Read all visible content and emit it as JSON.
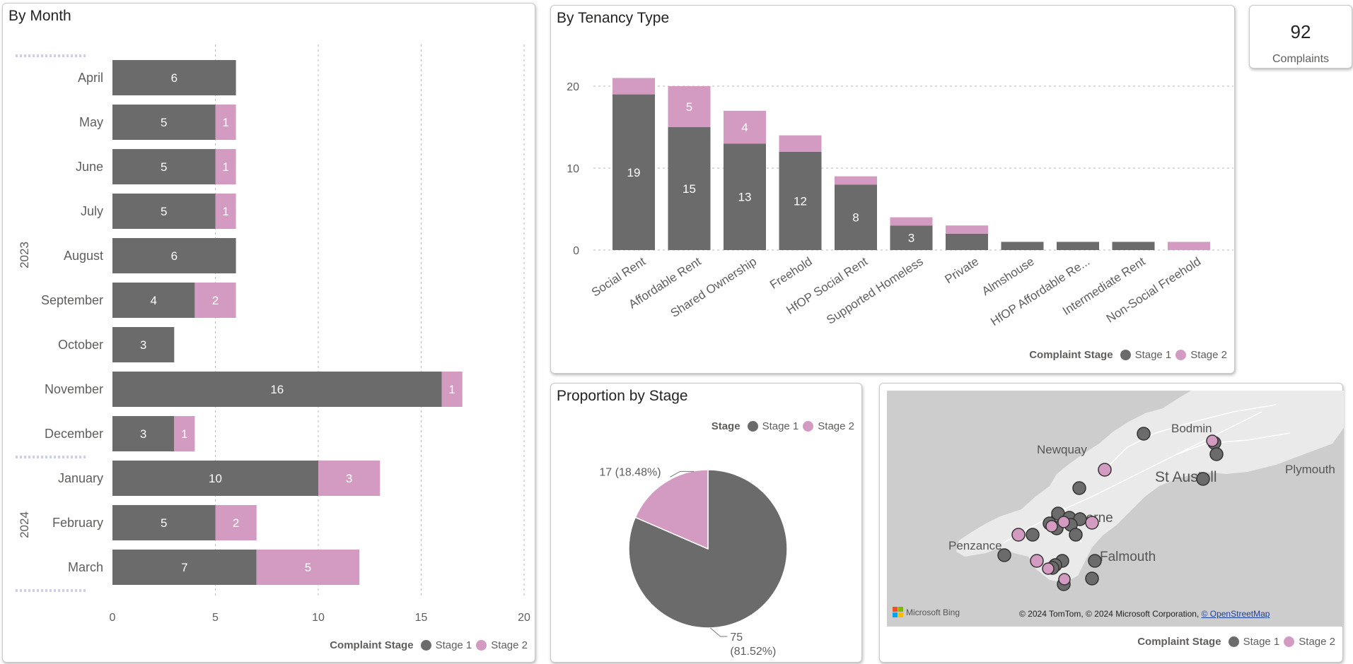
{
  "colors": {
    "stage1": "#6b6b6b",
    "stage2": "#d49bc2"
  },
  "legend": {
    "title": "Complaint Stage",
    "stage1": "Stage 1",
    "stage2": "Stage 2"
  },
  "by_month": {
    "title": "By Month",
    "year_labels": [
      "2023",
      "2024"
    ],
    "x_ticks": [
      "0",
      "5",
      "10",
      "15",
      "20"
    ]
  },
  "by_tenancy": {
    "title": "By Tenancy Type",
    "y_ticks": [
      "0",
      "10",
      "20"
    ]
  },
  "kpi": {
    "value": "92",
    "label": "Complaints"
  },
  "proportion": {
    "title": "Proportion by Stage",
    "legend_title": "Stage",
    "label_stage2": "17 (18.48%)",
    "label_stage1_line1": "75",
    "label_stage1_line2": "(81.52%)"
  },
  "map": {
    "place_labels": [
      "Newquay",
      "Bodmin",
      "St Austell",
      "Plymouth",
      "Penzance",
      "Camborne",
      "Falmouth"
    ],
    "bing_label": "Microsoft Bing",
    "credit": "© 2024 TomTom, © 2024 Microsoft Corporation, ",
    "osm_link": "© OpenStreetMap"
  },
  "chart_data": [
    {
      "type": "bar",
      "orientation": "horizontal",
      "stacked": true,
      "title": "By Month",
      "categories": [
        "April",
        "May",
        "June",
        "July",
        "August",
        "September",
        "October",
        "November",
        "December",
        "January",
        "February",
        "March"
      ],
      "groups": [
        {
          "label": "2023",
          "from": "April",
          "to": "December"
        },
        {
          "label": "2024",
          "from": "January",
          "to": "March"
        }
      ],
      "series": [
        {
          "name": "Stage 1",
          "values": [
            6,
            5,
            5,
            5,
            6,
            4,
            3,
            16,
            3,
            10,
            5,
            7
          ]
        },
        {
          "name": "Stage 2",
          "values": [
            0,
            1,
            1,
            1,
            0,
            2,
            0,
            1,
            1,
            3,
            2,
            5
          ]
        }
      ],
      "xlim": [
        0,
        20
      ],
      "x_ticks": [
        0,
        5,
        10,
        15,
        20
      ],
      "grid": true,
      "legend_title": "Complaint Stage",
      "legend_position": "bottom-right"
    },
    {
      "type": "bar",
      "orientation": "vertical",
      "stacked": true,
      "title": "By Tenancy Type",
      "categories": [
        "Social Rent",
        "Affordable Rent",
        "Shared Ownership",
        "Freehold",
        "HfOP Social Rent",
        "Supported Homeless",
        "Private",
        "Almshouse",
        "HfOP Affordable Re...",
        "Intermediate Rent",
        "Non-Social Freehold"
      ],
      "series": [
        {
          "name": "Stage 1",
          "values": [
            19,
            15,
            13,
            12,
            8,
            3,
            2,
            1,
            1,
            1,
            0
          ]
        },
        {
          "name": "Stage 2",
          "values": [
            2,
            5,
            4,
            2,
            1,
            1,
            1,
            0,
            0,
            0,
            1
          ]
        }
      ],
      "data_labels": {
        "Stage 1": [
          "19",
          "15",
          "13",
          "12",
          "8",
          "3",
          "",
          "",
          "",
          "",
          ""
        ],
        "Stage 2": [
          "",
          "5",
          "4",
          "",
          "",
          "",
          "",
          "",
          "",
          "",
          ""
        ]
      },
      "ylim": [
        0,
        22
      ],
      "y_ticks": [
        0,
        10,
        20
      ],
      "grid": true,
      "legend_title": "Complaint Stage",
      "legend_position": "bottom-right"
    },
    {
      "type": "pie",
      "title": "Proportion by Stage",
      "labels": [
        "Stage 1",
        "Stage 2"
      ],
      "values": [
        75,
        17
      ],
      "percentages": [
        81.52,
        18.48
      ],
      "legend_title": "Stage",
      "legend_position": "top-right"
    }
  ]
}
